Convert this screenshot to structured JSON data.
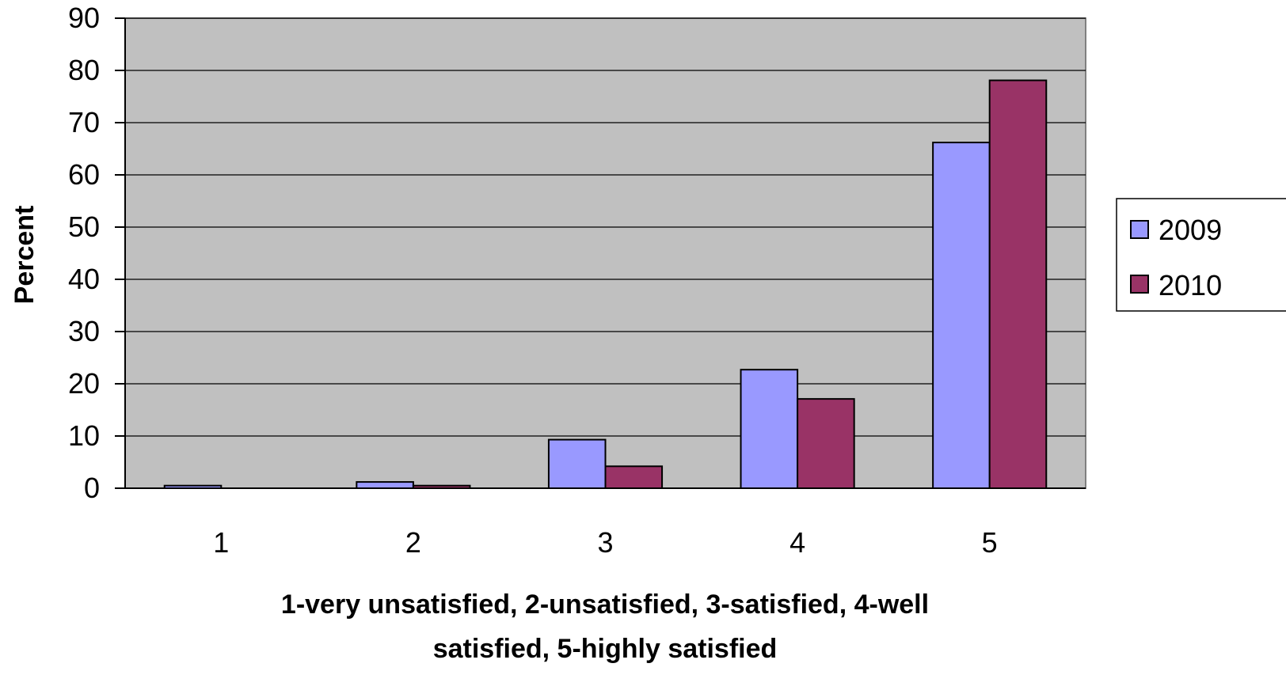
{
  "chart_data": {
    "type": "bar",
    "title": "",
    "xlabel_lines": [
      "1-very unsatisfied, 2-unsatisfied, 3-satisfied, 4-well",
      "satisfied, 5-highly satisfied"
    ],
    "ylabel": "Percent",
    "categories": [
      "1",
      "2",
      "3",
      "4",
      "5"
    ],
    "series": [
      {
        "name": "2009",
        "color": "#9999ff",
        "values": [
          0.5,
          1.2,
          9.3,
          22.7,
          66.2
        ]
      },
      {
        "name": "2010",
        "color": "#993366",
        "values": [
          0,
          0.5,
          4.2,
          17.1,
          78.1
        ]
      }
    ],
    "ylim": [
      0,
      90
    ],
    "yticks": [
      "0",
      "10",
      "20",
      "30",
      "40",
      "50",
      "60",
      "70",
      "80",
      "90"
    ],
    "plot_background": "#c0c0c0",
    "grid": true,
    "legend_position": "right"
  }
}
